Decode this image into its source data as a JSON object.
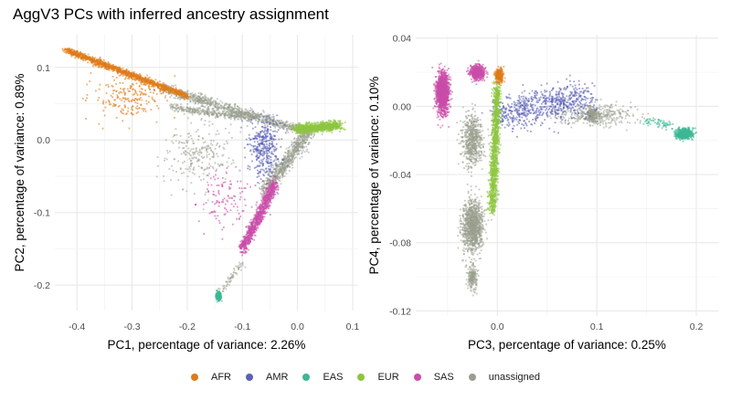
{
  "title": "AggV3 PCs with inferred ancestry assignment",
  "legend": [
    {
      "label": "AFR",
      "color": "#E07B18"
    },
    {
      "label": "AMR",
      "color": "#5B62B5"
    },
    {
      "label": "EAS",
      "color": "#3DB795"
    },
    {
      "label": "EUR",
      "color": "#8DC63F"
    },
    {
      "label": "SAS",
      "color": "#C94DA9"
    },
    {
      "label": "unassigned",
      "color": "#999E8E"
    }
  ],
  "chart_data": [
    {
      "type": "scatter",
      "xlabel": "PC1, percentage of variance: 2.26%",
      "ylabel": "PC2, percentage of variance: 0.89%",
      "xlim": [
        -0.44,
        0.11
      ],
      "ylim": [
        -0.235,
        0.145
      ],
      "xticks": [
        -0.4,
        -0.3,
        -0.2,
        -0.1,
        0.0,
        0.1
      ],
      "xtick_labels": [
        "-0.4",
        "-0.3",
        "-0.2",
        "-0.1",
        "0.0",
        "0.1"
      ],
      "yticks": [
        -0.2,
        -0.1,
        0.0,
        0.1
      ],
      "ytick_labels": [
        "-0.2",
        "-0.1",
        "0.0",
        "0.1"
      ],
      "grid": true,
      "legend": "bottom",
      "clusters": [
        {
          "group": "unassigned",
          "n": 900,
          "kind": "line",
          "from": [
            -0.24,
            0.07
          ],
          "to": [
            0.02,
            0.01
          ],
          "sx": 0.01,
          "sy": 0.007
        },
        {
          "group": "unassigned",
          "n": 700,
          "kind": "line",
          "from": [
            0.02,
            0.01
          ],
          "to": [
            -0.06,
            -0.07
          ],
          "sx": 0.012,
          "sy": 0.01
        },
        {
          "group": "unassigned",
          "n": 350,
          "kind": "line",
          "from": [
            -0.23,
            0.045
          ],
          "to": [
            -0.08,
            0.03
          ],
          "sx": 0.008,
          "sy": 0.005
        },
        {
          "group": "unassigned",
          "n": 250,
          "kind": "blob",
          "c": [
            -0.18,
            -0.02
          ],
          "sx": 0.06,
          "sy": 0.05
        },
        {
          "group": "unassigned",
          "n": 60,
          "kind": "line",
          "from": [
            -0.1,
            -0.17
          ],
          "to": [
            -0.14,
            -0.21
          ],
          "sx": 0.006,
          "sy": 0.006
        },
        {
          "group": "AFR",
          "n": 1200,
          "kind": "line",
          "from": [
            -0.42,
            0.124
          ],
          "to": [
            -0.2,
            0.06
          ],
          "sx": 0.008,
          "sy": 0.004
        },
        {
          "group": "AFR",
          "n": 220,
          "kind": "blob",
          "c": [
            -0.3,
            0.06
          ],
          "sx": 0.06,
          "sy": 0.03
        },
        {
          "group": "AMR",
          "n": 380,
          "kind": "blob",
          "c": [
            -0.06,
            -0.01
          ],
          "sx": 0.03,
          "sy": 0.04
        },
        {
          "group": "EUR",
          "n": 900,
          "kind": "line",
          "from": [
            0.0,
            0.015
          ],
          "to": [
            0.075,
            0.02
          ],
          "sx": 0.012,
          "sy": 0.006
        },
        {
          "group": "SAS",
          "n": 900,
          "kind": "line",
          "from": [
            -0.1,
            -0.15
          ],
          "to": [
            -0.04,
            -0.06
          ],
          "sx": 0.007,
          "sy": 0.01
        },
        {
          "group": "SAS",
          "n": 120,
          "kind": "blob",
          "c": [
            -0.13,
            -0.08
          ],
          "sx": 0.05,
          "sy": 0.04
        },
        {
          "group": "EAS",
          "n": 300,
          "kind": "blob",
          "c": [
            -0.143,
            -0.215
          ],
          "sx": 0.004,
          "sy": 0.006
        }
      ]
    },
    {
      "type": "scatter",
      "xlabel": "PC3, percentage of variance: 0.25%",
      "ylabel": "PC4, percentage of variance: 0.10%",
      "xlim": [
        -0.082,
        0.222
      ],
      "ylim": [
        -0.123,
        0.042
      ],
      "xticks": [
        0.0,
        0.1,
        0.2
      ],
      "xtick_labels": [
        "0.0",
        "0.1",
        "0.2"
      ],
      "yticks": [
        -0.12,
        -0.08,
        -0.04,
        0.0,
        0.04
      ],
      "ytick_labels": [
        "-0.12",
        "-0.08",
        "-0.04",
        "0.00",
        "0.04"
      ],
      "grid": true,
      "legend": "bottom",
      "clusters": [
        {
          "group": "unassigned",
          "n": 1100,
          "kind": "blob",
          "c": [
            -0.025,
            -0.07
          ],
          "sx": 0.01,
          "sy": 0.015
        },
        {
          "group": "unassigned",
          "n": 600,
          "kind": "blob",
          "c": [
            -0.025,
            -0.02
          ],
          "sx": 0.01,
          "sy": 0.015
        },
        {
          "group": "unassigned",
          "n": 200,
          "kind": "blob",
          "c": [
            -0.025,
            -0.1
          ],
          "sx": 0.005,
          "sy": 0.007
        },
        {
          "group": "unassigned",
          "n": 350,
          "kind": "blob",
          "c": [
            0.1,
            -0.005
          ],
          "sx": 0.04,
          "sy": 0.006
        },
        {
          "group": "unassigned",
          "n": 250,
          "kind": "blob",
          "c": [
            0.095,
            -0.005
          ],
          "sx": 0.005,
          "sy": 0.004
        },
        {
          "group": "AMR",
          "n": 700,
          "kind": "line",
          "from": [
            0.0,
            -0.005
          ],
          "to": [
            0.09,
            0.005
          ],
          "sx": 0.015,
          "sy": 0.01
        },
        {
          "group": "SAS",
          "n": 1600,
          "kind": "blob",
          "c": [
            -0.055,
            0.008
          ],
          "sx": 0.006,
          "sy": 0.011
        },
        {
          "group": "SAS",
          "n": 600,
          "kind": "blob",
          "c": [
            -0.02,
            0.02
          ],
          "sx": 0.007,
          "sy": 0.004
        },
        {
          "group": "EUR",
          "n": 1200,
          "kind": "line",
          "from": [
            0.0,
            0.012
          ],
          "to": [
            -0.005,
            -0.06
          ],
          "sx": 0.004,
          "sy": 0.006
        },
        {
          "group": "AFR",
          "n": 250,
          "kind": "blob",
          "c": [
            0.002,
            0.018
          ],
          "sx": 0.004,
          "sy": 0.004
        },
        {
          "group": "EAS",
          "n": 600,
          "kind": "blob",
          "c": [
            0.188,
            -0.016
          ],
          "sx": 0.008,
          "sy": 0.003
        },
        {
          "group": "EAS",
          "n": 60,
          "kind": "line",
          "from": [
            0.15,
            -0.008
          ],
          "to": [
            0.175,
            -0.012
          ],
          "sx": 0.006,
          "sy": 0.003
        }
      ]
    }
  ]
}
